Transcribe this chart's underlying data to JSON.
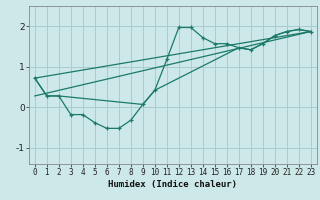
{
  "title": "",
  "xlabel": "Humidex (Indice chaleur)",
  "ylabel": "",
  "background_color": "#cde8e8",
  "grid_color": "#aacccc",
  "line_color": "#1a7a6a",
  "xlim": [
    -0.5,
    23.5
  ],
  "ylim": [
    -1.4,
    2.5
  ],
  "yticks": [
    -1,
    0,
    1,
    2
  ],
  "xticks": [
    0,
    1,
    2,
    3,
    4,
    5,
    6,
    7,
    8,
    9,
    10,
    11,
    12,
    13,
    14,
    15,
    16,
    17,
    18,
    19,
    20,
    21,
    22,
    23
  ],
  "series1_x": [
    0,
    1,
    2,
    3,
    4,
    5,
    6,
    7,
    8,
    9,
    10,
    11,
    12,
    13,
    14,
    15,
    16,
    17,
    18,
    19,
    20,
    21,
    22,
    23
  ],
  "series1_y": [
    0.72,
    0.28,
    0.28,
    -0.18,
    -0.18,
    -0.38,
    -0.52,
    -0.52,
    -0.32,
    0.07,
    0.42,
    1.18,
    1.97,
    1.97,
    1.72,
    1.57,
    1.57,
    1.47,
    1.42,
    1.57,
    1.77,
    1.87,
    1.92,
    1.87
  ],
  "series2_x": [
    0,
    1,
    2,
    9,
    10,
    17,
    18,
    19,
    20,
    21,
    22,
    23
  ],
  "series2_y": [
    0.72,
    0.28,
    0.28,
    0.07,
    0.42,
    1.47,
    1.42,
    1.57,
    1.77,
    1.87,
    1.92,
    1.87
  ],
  "series3_x": [
    0,
    23
  ],
  "series3_y": [
    0.72,
    1.87
  ],
  "series4_x": [
    0,
    23
  ],
  "series4_y": [
    0.28,
    1.87
  ]
}
